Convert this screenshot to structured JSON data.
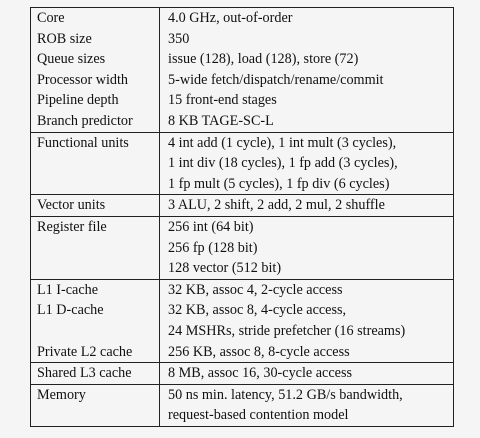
{
  "table": {
    "rows": [
      {
        "labels": [
          "Core",
          "ROB size",
          "Queue sizes",
          "Processor width",
          "Pipeline depth",
          "Branch predictor"
        ],
        "values": [
          "4.0 GHz, out-of-order",
          "350",
          "issue (128), load (128), store (72)",
          "5-wide fetch/dispatch/rename/commit",
          "15 front-end stages",
          "8 KB TAGE-SC-L"
        ]
      },
      {
        "labels": [
          "Functional units"
        ],
        "values": [
          "4 int add (1 cycle), 1 int mult (3 cycles),",
          "1 int div (18 cycles), 1 fp add (3 cycles),",
          "1 fp mult (5 cycles), 1 fp div (6 cycles)"
        ]
      },
      {
        "labels": [
          "Vector units"
        ],
        "values": [
          "3 ALU, 2 shift, 2 add, 2 mul, 2 shuffle"
        ]
      },
      {
        "labels": [
          "Register file"
        ],
        "values": [
          "256 int (64 bit)",
          "256 fp (128 bit)",
          "128 vector (512 bit)"
        ]
      },
      {
        "labels": [
          "L1 I-cache",
          "L1 D-cache",
          "",
          "Private L2 cache"
        ],
        "values": [
          "32 KB, assoc 4, 2-cycle access",
          "32 KB, assoc 8, 4-cycle access,",
          "24 MSHRs, stride prefetcher (16 streams)",
          "256 KB, assoc 8, 8-cycle access"
        ]
      },
      {
        "labels": [
          "Shared L3 cache"
        ],
        "values": [
          "8 MB, assoc 16, 30-cycle access"
        ]
      },
      {
        "labels": [
          "Memory"
        ],
        "values": [
          "50 ns min. latency, 51.2 GB/s bandwidth,",
          "request-based contention model"
        ]
      }
    ]
  }
}
